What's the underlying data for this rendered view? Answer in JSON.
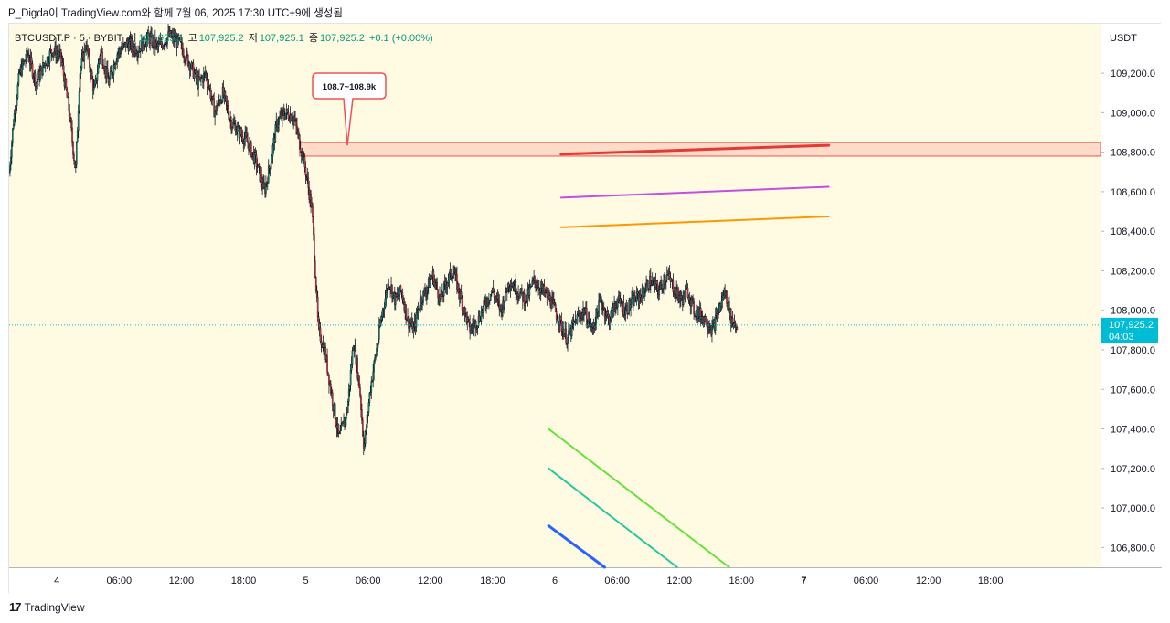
{
  "header": {
    "caption": "P_Digda이 TradingView.com와 함께 7월 06, 2025 17:30 UTC+9에 생성됨"
  },
  "legend": {
    "symbol": "BTCUSDT.P · 5 · BYBIT",
    "open_label": "시",
    "open_value": "107,925.1",
    "high_label": "고",
    "high_value": "107,925.2",
    "low_label": "저",
    "low_value": "107,925.1",
    "close_label": "종",
    "close_value": "107,925.2",
    "change": "+0.1 (+0.00%)"
  },
  "footer": {
    "logo_text": "TradingView"
  },
  "chart_data": {
    "type": "candlestick",
    "symbol": "BTCUSDT.P",
    "interval": "5",
    "exchange": "BYBIT",
    "currency": "USDT",
    "y_range": [
      106700,
      109450
    ],
    "y_ticks": [
      106800,
      107000,
      107200,
      107400,
      107600,
      107800,
      108000,
      108200,
      108400,
      108600,
      108800,
      109000,
      109200
    ],
    "y_tick_labels": [
      "106,800.0",
      "107,000.0",
      "107,200.0",
      "107,400.0",
      "107,600.0",
      "107,800.0",
      "108,000.0",
      "108,200.0",
      "108,400.0",
      "108,600.0",
      "108,800.0",
      "109,000.0",
      "109,200.0"
    ],
    "x_range_hours": [
      -52.6,
      52.6
    ],
    "x_ticks": [
      {
        "label": "18:00",
        "h": -54
      },
      {
        "label": "4",
        "h": -48
      },
      {
        "label": "06:00",
        "h": -42
      },
      {
        "label": "12:00",
        "h": -36
      },
      {
        "label": "18:00",
        "h": -30
      },
      {
        "label": "5",
        "h": -24
      },
      {
        "label": "06:00",
        "h": -18
      },
      {
        "label": "12:00",
        "h": -12
      },
      {
        "label": "18:00",
        "h": -6
      },
      {
        "label": "6",
        "h": 0
      },
      {
        "label": "06:00",
        "h": 6
      },
      {
        "label": "12:00",
        "h": 12
      },
      {
        "label": "18:00",
        "h": 18
      },
      {
        "label": "7",
        "h": 24
      },
      {
        "label": "06:00",
        "h": 30
      },
      {
        "label": "12:00",
        "h": 36
      },
      {
        "label": "18:00",
        "h": 42
      }
    ],
    "bold_x_labels": [
      "7"
    ],
    "current_price": "107,925.2",
    "current_price_value": 107925.2,
    "countdown": "04:03",
    "price_path": [
      [
        -52.6,
        108700
      ],
      [
        -52.2,
        108950
      ],
      [
        -51.6,
        109200
      ],
      [
        -50.8,
        109300
      ],
      [
        -50.0,
        109150
      ],
      [
        -49.2,
        109250
      ],
      [
        -48.4,
        109320
      ],
      [
        -47.6,
        109280
      ],
      [
        -46.8,
        109000
      ],
      [
        -46.2,
        108700
      ],
      [
        -45.8,
        109200
      ],
      [
        -45.2,
        109350
      ],
      [
        -44.4,
        109100
      ],
      [
        -43.8,
        109320
      ],
      [
        -43.0,
        109150
      ],
      [
        -42.2,
        109300
      ],
      [
        -41.2,
        109350
      ],
      [
        -40.2,
        109320
      ],
      [
        -39.2,
        109380
      ],
      [
        -38.2,
        109330
      ],
      [
        -37.2,
        109390
      ],
      [
        -36.2,
        109350
      ],
      [
        -35.2,
        109250
      ],
      [
        -34.4,
        109150
      ],
      [
        -33.6,
        109200
      ],
      [
        -32.8,
        109000
      ],
      [
        -32.0,
        109100
      ],
      [
        -31.2,
        108950
      ],
      [
        -30.4,
        108900
      ],
      [
        -29.6,
        108850
      ],
      [
        -28.8,
        108750
      ],
      [
        -28.0,
        108600
      ],
      [
        -27.4,
        108750
      ],
      [
        -26.8,
        108950
      ],
      [
        -26.0,
        109000
      ],
      [
        -25.2,
        108980
      ],
      [
        -24.6,
        108850
      ],
      [
        -24.0,
        108700
      ],
      [
        -23.4,
        108500
      ],
      [
        -22.8,
        107900
      ],
      [
        -22.2,
        107800
      ],
      [
        -21.6,
        107600
      ],
      [
        -20.8,
        107350
      ],
      [
        -20.0,
        107500
      ],
      [
        -19.4,
        107850
      ],
      [
        -18.8,
        107600
      ],
      [
        -18.4,
        107300
      ],
      [
        -17.8,
        107600
      ],
      [
        -17.2,
        107800
      ],
      [
        -16.6,
        108000
      ],
      [
        -16.0,
        108150
      ],
      [
        -15.4,
        108050
      ],
      [
        -14.8,
        108100
      ],
      [
        -14.2,
        107950
      ],
      [
        -13.6,
        107900
      ],
      [
        -13.0,
        108050
      ],
      [
        -12.4,
        108100
      ],
      [
        -11.8,
        108180
      ],
      [
        -11.0,
        108050
      ],
      [
        -10.4,
        108150
      ],
      [
        -9.8,
        108200
      ],
      [
        -9.0,
        108050
      ],
      [
        -8.2,
        107900
      ],
      [
        -7.4,
        107950
      ],
      [
        -6.6,
        108050
      ],
      [
        -6.0,
        108100
      ],
      [
        -5.2,
        108000
      ],
      [
        -4.4,
        108150
      ],
      [
        -3.6,
        108100
      ],
      [
        -2.8,
        108050
      ],
      [
        -2.0,
        108150
      ],
      [
        -1.2,
        108100
      ],
      [
        -0.4,
        108050
      ],
      [
        0.4,
        107950
      ],
      [
        1.2,
        107850
      ],
      [
        2.0,
        107950
      ],
      [
        2.8,
        108000
      ],
      [
        3.6,
        107900
      ],
      [
        4.4,
        108050
      ],
      [
        5.2,
        107950
      ],
      [
        6.0,
        108050
      ],
      [
        6.8,
        108000
      ],
      [
        7.6,
        108050
      ],
      [
        8.4,
        108080
      ],
      [
        9.2,
        108150
      ],
      [
        10.0,
        108100
      ],
      [
        10.8,
        108180
      ],
      [
        11.6,
        108100
      ],
      [
        12.2,
        108050
      ],
      [
        12.8,
        108100
      ],
      [
        13.4,
        108000
      ],
      [
        14.0,
        107980
      ],
      [
        14.6,
        107950
      ],
      [
        15.2,
        107900
      ],
      [
        15.8,
        108000
      ],
      [
        16.4,
        108100
      ],
      [
        17.0,
        107950
      ],
      [
        17.6,
        107925.2
      ]
    ],
    "annotations": [
      {
        "type": "zone",
        "label": "",
        "x_from_h": -24.6,
        "x_to_h": 52.6,
        "y_from": 108780,
        "y_to": 108850,
        "color": "#ef5350"
      },
      {
        "type": "callout",
        "text": "108.7~108.9k",
        "x_h": -20.0,
        "y": 108820,
        "color": "#ef5350"
      },
      {
        "type": "trend_line",
        "from": [
          0.6,
          108790
        ],
        "to": [
          26.4,
          108835
        ],
        "color": "#e53935"
      },
      {
        "type": "trend_line",
        "from": [
          0.6,
          108570
        ],
        "to": [
          26.4,
          108625
        ],
        "color": "#c44ee0"
      },
      {
        "type": "trend_line",
        "from": [
          0.6,
          108420
        ],
        "to": [
          26.4,
          108475
        ],
        "color": "#ff9800"
      },
      {
        "type": "trend_line",
        "from": [
          -0.6,
          107400
        ],
        "to": [
          16.8,
          106700
        ],
        "color": "#66e23a"
      },
      {
        "type": "trend_line",
        "from": [
          -0.6,
          107200
        ],
        "to": [
          11.8,
          106700
        ],
        "color": "#26c6a0"
      },
      {
        "type": "trend_line",
        "from": [
          -0.6,
          106910
        ],
        "to": [
          4.8,
          106700
        ],
        "color": "#2962ff"
      }
    ],
    "colors": {
      "background": "#fffbe3",
      "up": "#089981",
      "down": "#f23645",
      "candle": "#131722",
      "price_line": "#00bcd4"
    }
  }
}
